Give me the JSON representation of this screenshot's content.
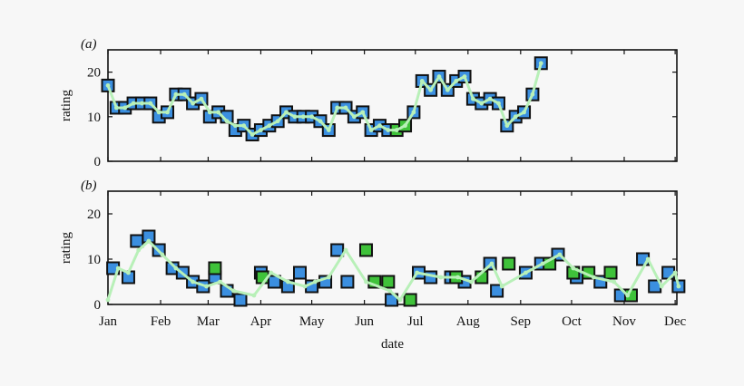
{
  "colors": {
    "background": "#f7f7f7",
    "blue_marker": "#3b8fe0",
    "green_marker": "#3fc23a",
    "marker_edge": "#111111",
    "line": "#b8f0b8"
  },
  "chart_data": [
    {
      "type": "scatter",
      "panel_label": "(a)",
      "xlabel": "",
      "ylabel": "rating",
      "ylim": [
        0,
        25
      ],
      "xlim": [
        0,
        335
      ],
      "yticks": [
        0,
        10,
        20
      ],
      "xticks": [],
      "grid": false,
      "points_blue": [
        [
          0,
          17
        ],
        [
          5,
          12
        ],
        [
          10,
          12
        ],
        [
          15,
          13
        ],
        [
          20,
          13
        ],
        [
          25,
          13
        ],
        [
          30,
          10
        ],
        [
          35,
          11
        ],
        [
          40,
          15
        ],
        [
          45,
          15
        ],
        [
          50,
          13
        ],
        [
          55,
          14
        ],
        [
          60,
          10
        ],
        [
          65,
          11
        ],
        [
          70,
          10
        ],
        [
          75,
          7
        ],
        [
          80,
          8
        ],
        [
          85,
          6
        ],
        [
          90,
          7
        ],
        [
          95,
          8
        ],
        [
          100,
          9
        ],
        [
          105,
          11
        ],
        [
          110,
          10
        ],
        [
          115,
          10
        ],
        [
          120,
          10
        ],
        [
          125,
          9
        ],
        [
          130,
          7
        ],
        [
          135,
          12
        ],
        [
          140,
          12
        ],
        [
          145,
          10
        ],
        [
          150,
          11
        ],
        [
          155,
          7
        ],
        [
          160,
          8
        ],
        [
          165,
          7
        ],
        [
          180,
          11
        ],
        [
          185,
          18
        ],
        [
          190,
          16
        ],
        [
          195,
          19
        ],
        [
          200,
          16
        ],
        [
          205,
          18
        ],
        [
          210,
          19
        ],
        [
          215,
          14
        ],
        [
          220,
          13
        ],
        [
          225,
          14
        ],
        [
          230,
          13
        ],
        [
          235,
          8
        ],
        [
          240,
          10
        ],
        [
          245,
          11
        ],
        [
          250,
          15
        ],
        [
          255,
          22
        ]
      ],
      "points_green": [
        [
          170,
          7
        ],
        [
          175,
          8
        ]
      ],
      "line_points": [
        [
          0,
          17
        ],
        [
          5,
          12
        ],
        [
          10,
          12
        ],
        [
          15,
          13
        ],
        [
          20,
          13
        ],
        [
          25,
          13
        ],
        [
          30,
          11
        ],
        [
          35,
          11
        ],
        [
          40,
          15
        ],
        [
          45,
          15
        ],
        [
          50,
          13
        ],
        [
          55,
          14
        ],
        [
          60,
          11
        ],
        [
          65,
          11
        ],
        [
          70,
          9
        ],
        [
          75,
          8
        ],
        [
          80,
          8
        ],
        [
          85,
          6
        ],
        [
          90,
          7
        ],
        [
          95,
          8
        ],
        [
          100,
          9
        ],
        [
          105,
          11
        ],
        [
          110,
          10
        ],
        [
          115,
          10
        ],
        [
          120,
          10
        ],
        [
          125,
          9
        ],
        [
          130,
          7
        ],
        [
          135,
          12
        ],
        [
          140,
          12
        ],
        [
          145,
          10
        ],
        [
          150,
          11
        ],
        [
          155,
          7
        ],
        [
          160,
          8
        ],
        [
          165,
          7
        ],
        [
          170,
          7
        ],
        [
          175,
          8
        ],
        [
          180,
          11
        ],
        [
          185,
          18
        ],
        [
          190,
          16
        ],
        [
          195,
          19
        ],
        [
          200,
          16
        ],
        [
          205,
          18
        ],
        [
          210,
          19
        ],
        [
          215,
          14
        ],
        [
          220,
          13
        ],
        [
          225,
          14
        ],
        [
          230,
          13
        ],
        [
          235,
          8
        ],
        [
          240,
          10
        ],
        [
          245,
          11
        ],
        [
          250,
          15
        ],
        [
          255,
          22
        ]
      ]
    },
    {
      "type": "scatter",
      "panel_label": "(b)",
      "xlabel": "date",
      "ylabel": "rating",
      "ylim": [
        0,
        25
      ],
      "xlim": [
        0,
        335
      ],
      "yticks": [
        0,
        10,
        20
      ],
      "xticks": [
        {
          "value": 0,
          "label": "Jan"
        },
        {
          "value": 31,
          "label": "Feb"
        },
        {
          "value": 59,
          "label": "Mar"
        },
        {
          "value": 90,
          "label": "Apr"
        },
        {
          "value": 120,
          "label": "May"
        },
        {
          "value": 151,
          "label": "Jun"
        },
        {
          "value": 181,
          "label": "Jul"
        },
        {
          "value": 212,
          "label": "Aug"
        },
        {
          "value": 243,
          "label": "Sep"
        },
        {
          "value": 273,
          "label": "Oct"
        },
        {
          "value": 304,
          "label": "Nov"
        },
        {
          "value": 334,
          "label": "Dec"
        }
      ],
      "grid": false,
      "points_blue": [
        [
          3,
          8
        ],
        [
          12,
          6
        ],
        [
          17,
          14
        ],
        [
          24,
          15
        ],
        [
          30,
          12
        ],
        [
          38,
          8
        ],
        [
          44,
          7
        ],
        [
          50,
          5
        ],
        [
          56,
          4
        ],
        [
          63,
          6
        ],
        [
          70,
          3
        ],
        [
          78,
          1
        ],
        [
          90,
          7
        ],
        [
          98,
          5
        ],
        [
          106,
          4
        ],
        [
          113,
          7
        ],
        [
          120,
          4
        ],
        [
          128,
          5
        ],
        [
          135,
          12
        ],
        [
          141,
          5
        ],
        [
          167,
          1
        ],
        [
          183,
          7
        ],
        [
          190,
          6
        ],
        [
          202,
          6
        ],
        [
          210,
          5
        ],
        [
          225,
          9
        ],
        [
          229,
          3
        ],
        [
          246,
          7
        ],
        [
          255,
          9
        ],
        [
          265,
          11
        ],
        [
          276,
          6
        ],
        [
          290,
          5
        ],
        [
          302,
          2
        ],
        [
          315,
          10
        ],
        [
          322,
          4
        ],
        [
          330,
          7
        ],
        [
          336,
          4
        ]
      ],
      "points_green": [
        [
          63,
          8
        ],
        [
          91,
          6
        ],
        [
          152,
          12
        ],
        [
          157,
          5
        ],
        [
          165,
          5
        ],
        [
          178,
          1
        ],
        [
          205,
          6
        ],
        [
          220,
          6
        ],
        [
          236,
          9
        ],
        [
          260,
          9
        ],
        [
          274,
          7
        ],
        [
          283,
          7
        ],
        [
          296,
          7
        ],
        [
          308,
          2
        ]
      ],
      "line_points": [
        [
          0,
          1
        ],
        [
          6,
          8
        ],
        [
          12,
          7
        ],
        [
          18,
          12
        ],
        [
          24,
          14
        ],
        [
          32,
          11
        ],
        [
          40,
          8
        ],
        [
          50,
          5
        ],
        [
          58,
          4
        ],
        [
          66,
          5
        ],
        [
          74,
          3
        ],
        [
          86,
          2
        ],
        [
          96,
          7
        ],
        [
          106,
          5
        ],
        [
          116,
          4
        ],
        [
          122,
          5
        ],
        [
          130,
          6
        ],
        [
          140,
          12
        ],
        [
          152,
          5
        ],
        [
          166,
          3
        ],
        [
          172,
          1
        ],
        [
          182,
          7
        ],
        [
          196,
          6
        ],
        [
          206,
          6
        ],
        [
          214,
          5
        ],
        [
          226,
          9
        ],
        [
          232,
          4
        ],
        [
          246,
          7
        ],
        [
          256,
          9
        ],
        [
          266,
          11
        ],
        [
          274,
          8
        ],
        [
          286,
          6
        ],
        [
          298,
          5
        ],
        [
          306,
          2
        ],
        [
          318,
          10
        ],
        [
          326,
          4
        ],
        [
          334,
          7
        ],
        [
          336,
          4
        ]
      ]
    }
  ]
}
